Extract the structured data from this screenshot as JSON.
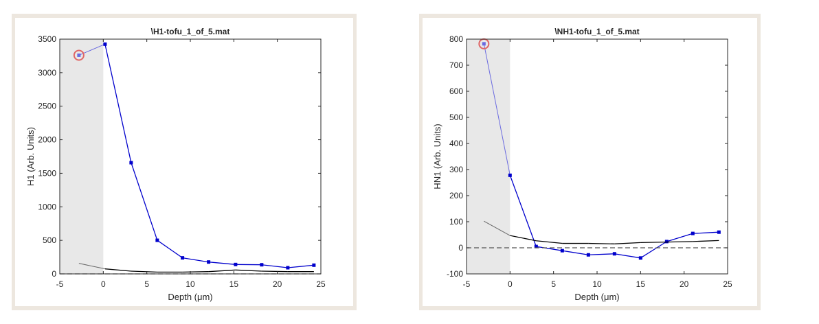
{
  "chart_data": [
    {
      "type": "line",
      "title": "\\H1-tofu_1_of_5.mat",
      "xlabel": "Depth (μm)",
      "ylabel": "H1 (Arb. Units)",
      "xlim": [
        -5,
        25
      ],
      "ylim": [
        0,
        3500
      ],
      "xticks": [
        -5,
        0,
        5,
        10,
        15,
        20,
        25
      ],
      "yticks": [
        0,
        500,
        1000,
        1500,
        2000,
        2500,
        3000,
        3500
      ],
      "shaded_region": [
        -5,
        0
      ],
      "highlighted_point_index": 0,
      "series": [
        {
          "name": "signal",
          "color": "#0000cc",
          "x": [
            -2.8,
            0.2,
            3.2,
            6.2,
            9.1,
            12.1,
            15.2,
            18.2,
            21.2,
            24.2
          ],
          "y": [
            3260,
            3425,
            1658,
            501,
            239,
            177,
            140,
            136,
            92,
            130
          ]
        },
        {
          "name": "baseline",
          "color": "#000000",
          "x": [
            -2.8,
            0.2,
            3.2,
            6.2,
            9.1,
            12.1,
            15.2,
            18.2,
            21.2,
            24.2
          ],
          "y": [
            157,
            75,
            41,
            27,
            27,
            34,
            58,
            41,
            34,
            34
          ]
        },
        {
          "name": "zero",
          "color": "#555555",
          "dashed": true,
          "x": [
            -5,
            25
          ],
          "y": [
            0,
            0
          ]
        }
      ]
    },
    {
      "type": "line",
      "title": "\\NH1-tofu_1_of_5.mat",
      "xlabel": "Depth (μm)",
      "ylabel": "HN1 (Arb. Units)",
      "xlim": [
        -5,
        25
      ],
      "ylim": [
        -100,
        800
      ],
      "xticks": [
        -5,
        0,
        5,
        10,
        15,
        20,
        25
      ],
      "yticks": [
        -100,
        0,
        100,
        200,
        300,
        400,
        500,
        600,
        700,
        800
      ],
      "shaded_region": [
        -5,
        0
      ],
      "highlighted_point_index": 0,
      "series": [
        {
          "name": "signal",
          "color": "#0000cc",
          "x": [
            -3,
            0,
            3,
            6,
            9,
            12,
            15,
            18,
            21,
            24
          ],
          "y": [
            782,
            278,
            5,
            -11,
            -27,
            -23,
            -39,
            24,
            55,
            60
          ]
        },
        {
          "name": "baseline",
          "color": "#000000",
          "x": [
            -3,
            0,
            3,
            6,
            9,
            12,
            15,
            18,
            21,
            24
          ],
          "y": [
            102,
            47,
            27,
            17,
            17,
            15,
            20,
            22,
            24,
            28
          ]
        },
        {
          "name": "zero",
          "color": "#555555",
          "dashed": true,
          "x": [
            -5,
            25
          ],
          "y": [
            0,
            0
          ]
        }
      ]
    }
  ]
}
